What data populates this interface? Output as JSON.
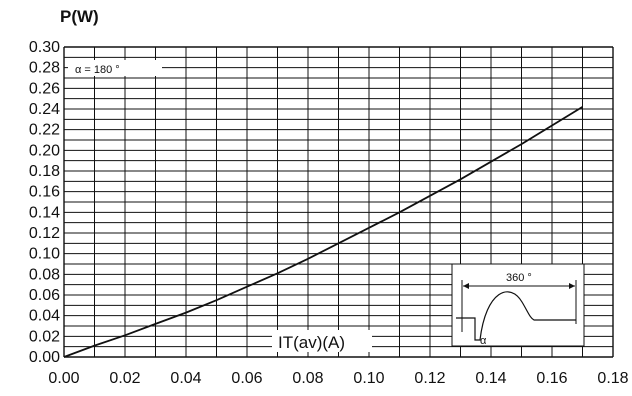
{
  "chart_data": {
    "type": "line",
    "ylabel": "P(W)",
    "xlabel": "IT(av)(A)",
    "xlim": [
      0.0,
      0.18
    ],
    "ylim": [
      0.0,
      0.3
    ],
    "x_tick_labels": [
      "0.00",
      "0.02",
      "0.04",
      "0.06",
      "0.08",
      "0.10",
      "0.12",
      "0.14",
      "0.16",
      "0.18"
    ],
    "y_tick_labels": [
      "0.00",
      "0.02",
      "0.04",
      "0.06",
      "0.08",
      "0.10",
      "0.12",
      "0.14",
      "0.16",
      "0.18",
      "0.20",
      "0.22",
      "0.24",
      "0.26",
      "0.28",
      "0.30"
    ],
    "grid": true,
    "annotation": "α = 180 °",
    "inset": {
      "period_label": "360 °",
      "angle_label": "α"
    },
    "series": [
      {
        "x": [
          0.0,
          0.01,
          0.02,
          0.03,
          0.04,
          0.05,
          0.06,
          0.07,
          0.08,
          0.09,
          0.1,
          0.11,
          0.12,
          0.13,
          0.14,
          0.15,
          0.16,
          0.17
        ],
        "y": [
          0.0,
          0.011,
          0.021,
          0.032,
          0.043,
          0.055,
          0.068,
          0.081,
          0.095,
          0.11,
          0.125,
          0.14,
          0.156,
          0.172,
          0.189,
          0.206,
          0.224,
          0.242
        ]
      }
    ]
  }
}
